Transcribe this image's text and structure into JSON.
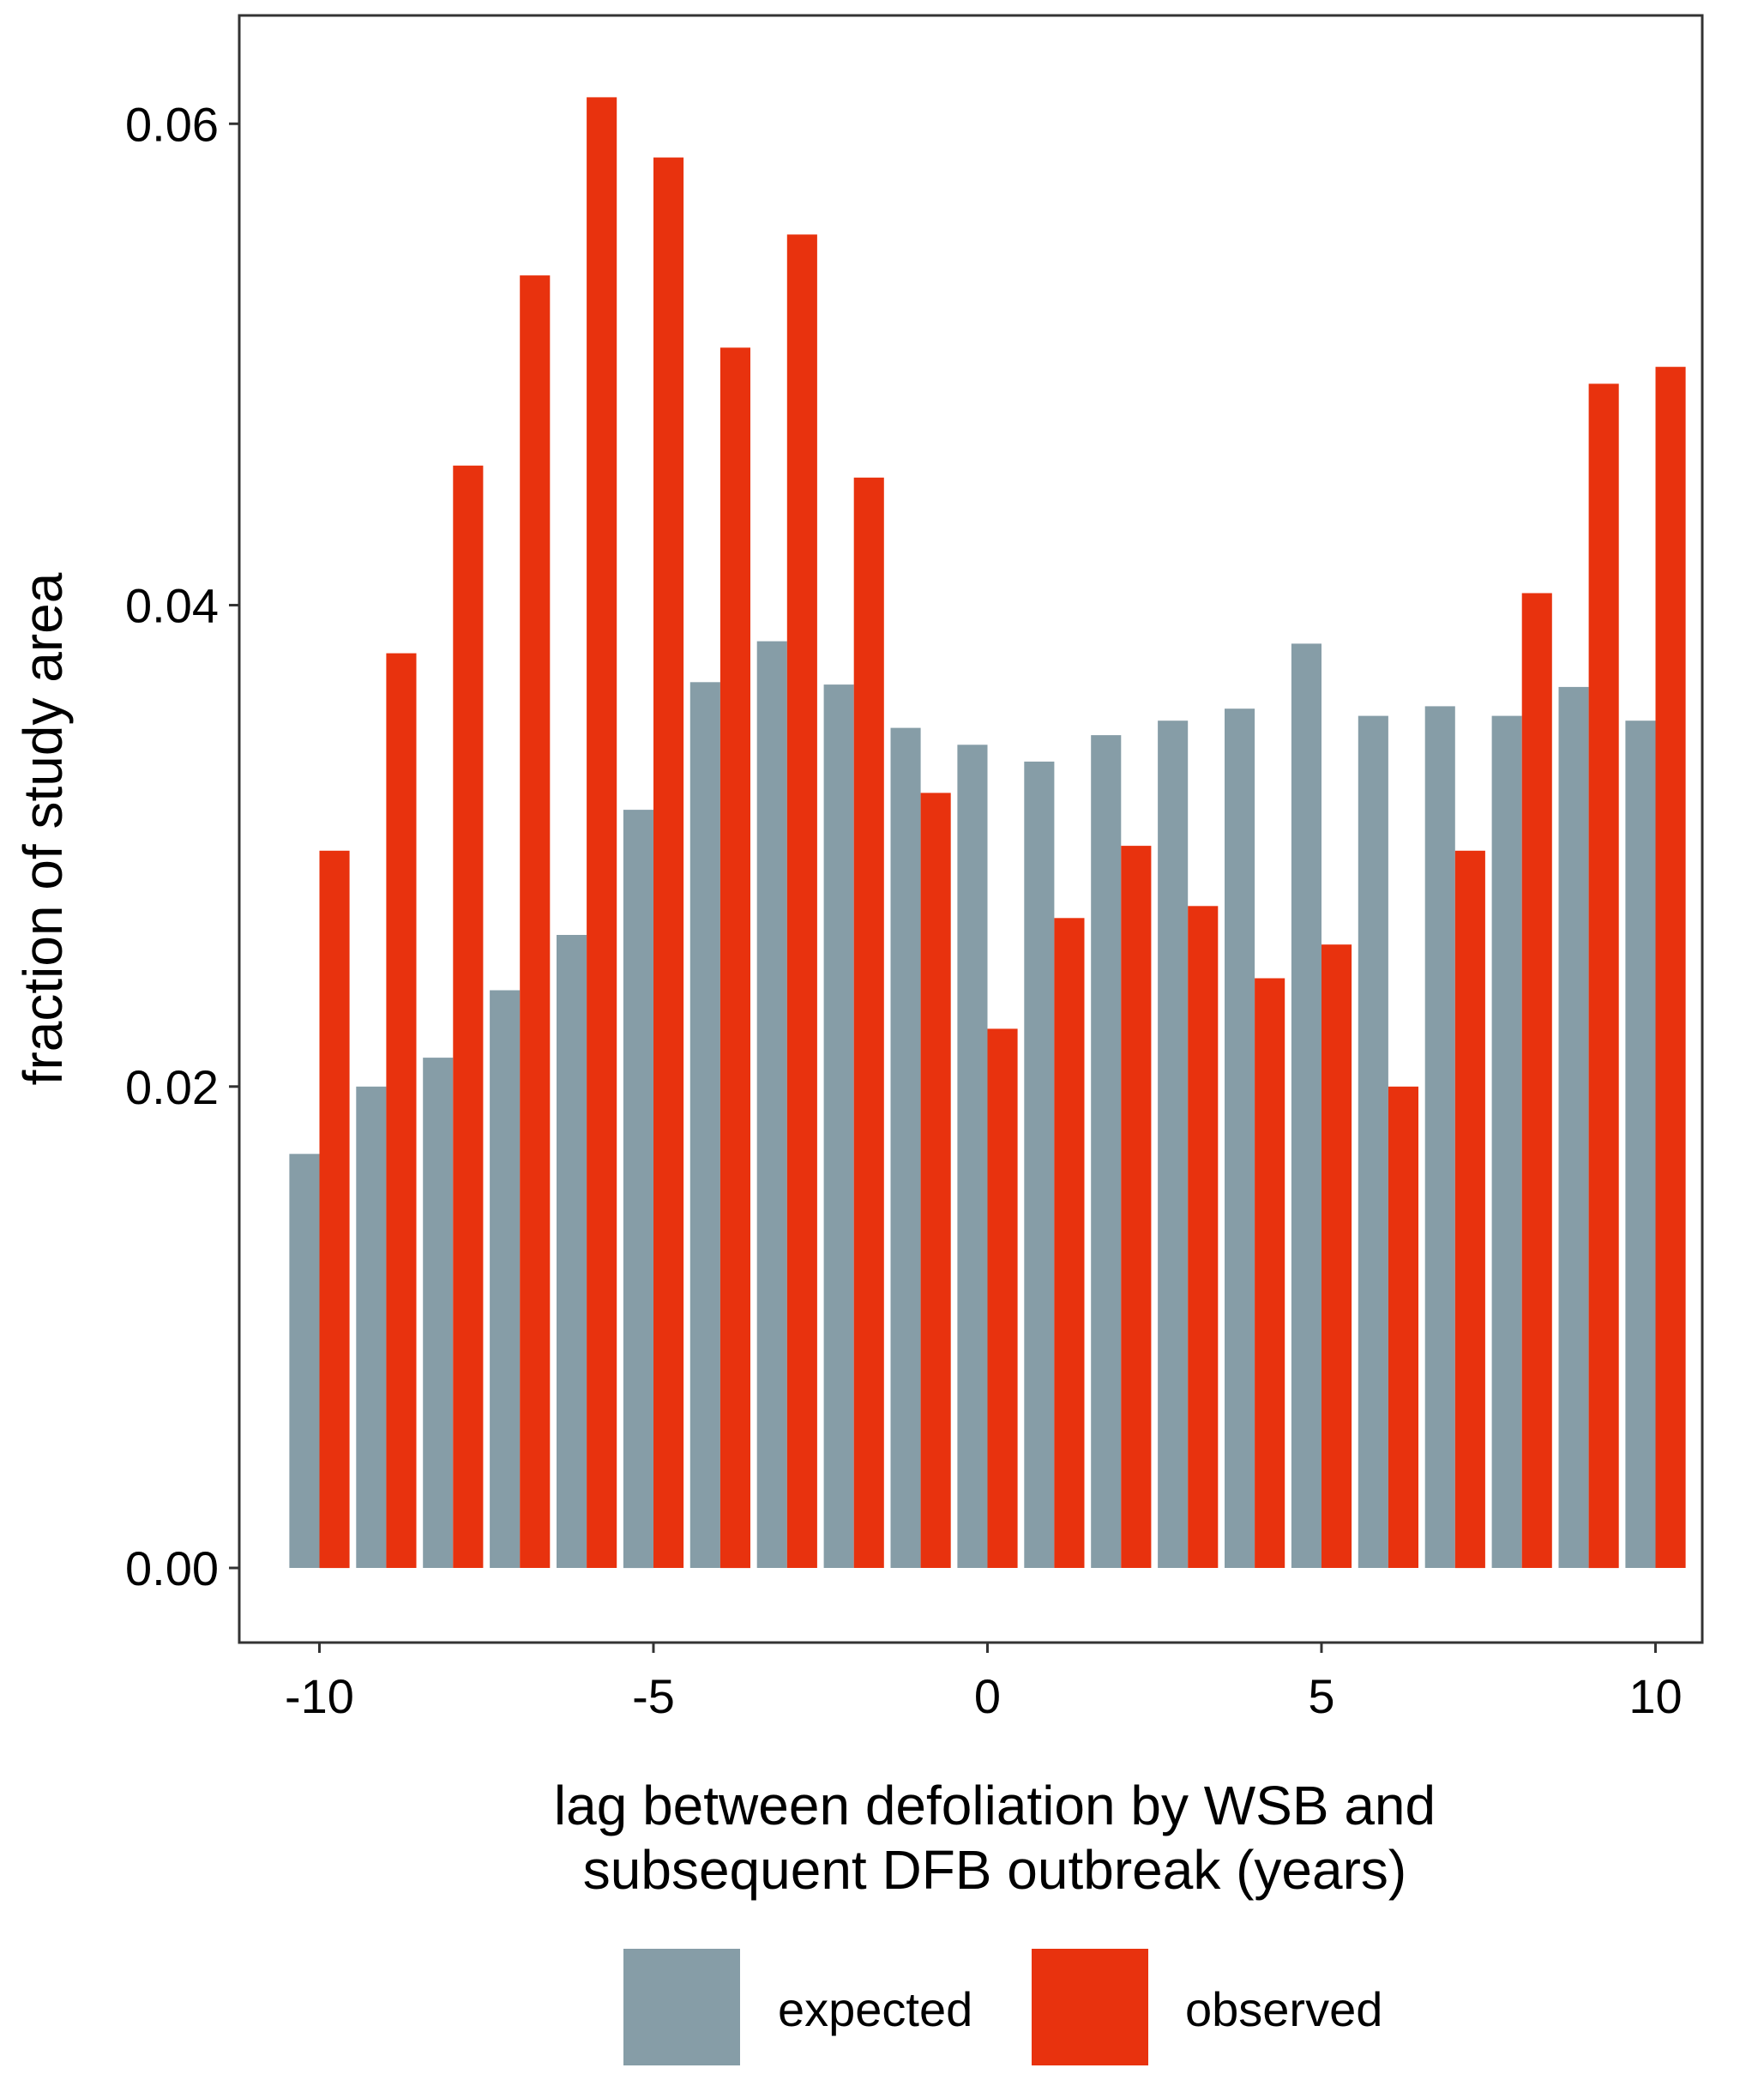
{
  "chart_data": {
    "type": "bar",
    "title": "",
    "xlabel_lines": [
      "lag between defoliation by WSB and",
      "subsequent DFB outbreak (years)"
    ],
    "ylabel": "fraction of study area",
    "x": [
      -10,
      -9,
      -8,
      -7,
      -6,
      -5,
      -4,
      -3,
      -2,
      -1,
      0,
      1,
      2,
      3,
      4,
      5,
      6,
      7,
      8,
      9,
      10
    ],
    "xlim": [
      -11.2,
      10.7
    ],
    "ylim": [
      -0.0031,
      0.0645
    ],
    "xticks": [
      -10,
      -5,
      0,
      5,
      10
    ],
    "xtick_labels": [
      "-10",
      "-5",
      "0",
      "5",
      "10"
    ],
    "yticks": [
      0.0,
      0.02,
      0.04,
      0.06
    ],
    "ytick_labels": [
      "0.00",
      "0.02",
      "0.04",
      "0.06"
    ],
    "grid": false,
    "legend_position": "bottom",
    "series": [
      {
        "name": "expected",
        "color": "#869DA7",
        "values": [
          0.0172,
          0.02,
          0.0212,
          0.024,
          0.0263,
          0.0315,
          0.0368,
          0.0385,
          0.0367,
          0.0349,
          0.0342,
          0.0335,
          0.0346,
          0.0352,
          0.0357,
          0.0384,
          0.0354,
          0.0358,
          0.0354,
          0.0366,
          0.0352
        ]
      },
      {
        "name": "observed",
        "color": "#E8320E",
        "values": [
          0.0298,
          0.038,
          0.0458,
          0.0537,
          0.0611,
          0.0586,
          0.0507,
          0.0554,
          0.0453,
          0.0322,
          0.0224,
          0.027,
          0.03,
          0.0275,
          0.0245,
          0.0259,
          0.02,
          0.0298,
          0.0405,
          0.0492,
          0.0499
        ]
      }
    ]
  }
}
